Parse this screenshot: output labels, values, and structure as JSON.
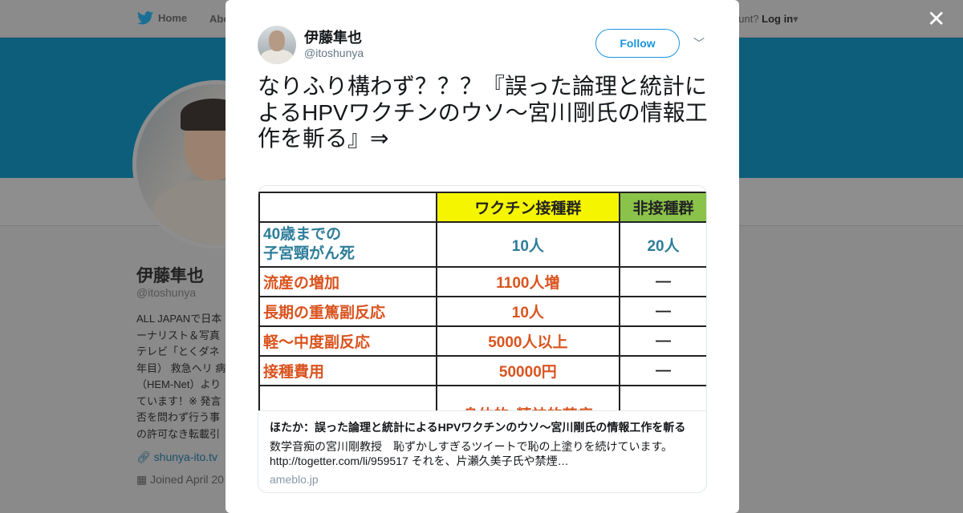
{
  "nav": {
    "home": "Home",
    "about": "Abo",
    "account": "ccount?",
    "login": "Log in"
  },
  "profile": {
    "name": "伊藤隼也",
    "handle": "@itoshunya",
    "bio": [
      "ALL JAPANで日本",
      "ーナリスト＆写真",
      "テレビ「とくダネ",
      "年目） 救急ヘリ 病",
      "（HEM-Net）より",
      "ています！※ 発言",
      "否を問わず行う事",
      "の許可なき転載引"
    ],
    "link": "shunya-ito.tv",
    "joined": "Joined April 20"
  },
  "modal": {
    "author": {
      "name": "伊藤隼也",
      "handle": "@itoshunya"
    },
    "follow": "Follow",
    "tweet": "なりふり構わず？？？『誤った論理と統計によるHPVワクチンのウソ～宮川剛氏の情報工作を斬る』⇒",
    "card": {
      "table": {
        "headers": [
          "",
          "ワクチン接種群",
          "非接種群"
        ],
        "rows": [
          [
            "40歳までの\n子宮頸がん死",
            "10人",
            "20人"
          ],
          [
            "流産の増加",
            "1100人増",
            "—"
          ],
          [
            "長期の重篤副反応",
            "10人",
            "—"
          ],
          [
            "軽～中度副反応",
            "5000人以上",
            "—"
          ],
          [
            "接種費用",
            "50000円",
            "—"
          ],
          [
            "",
            "身体的･精神的苦痛",
            ""
          ]
        ]
      },
      "title": "ほたか：誤った論理と統計によるHPVワクチンのウソ～宮川剛氏の情報工作を斬る",
      "description": "数学音痴の宮川剛教授　恥ずかしすぎるツイートで恥の上塗りを続けています。http://togetter.com/li/959517 それを、片瀬久美子氏や禁煙…",
      "domain": "ameblo.jp"
    }
  },
  "colors": {
    "accent": "#1b95e0",
    "banner": "#0d5e7b"
  }
}
